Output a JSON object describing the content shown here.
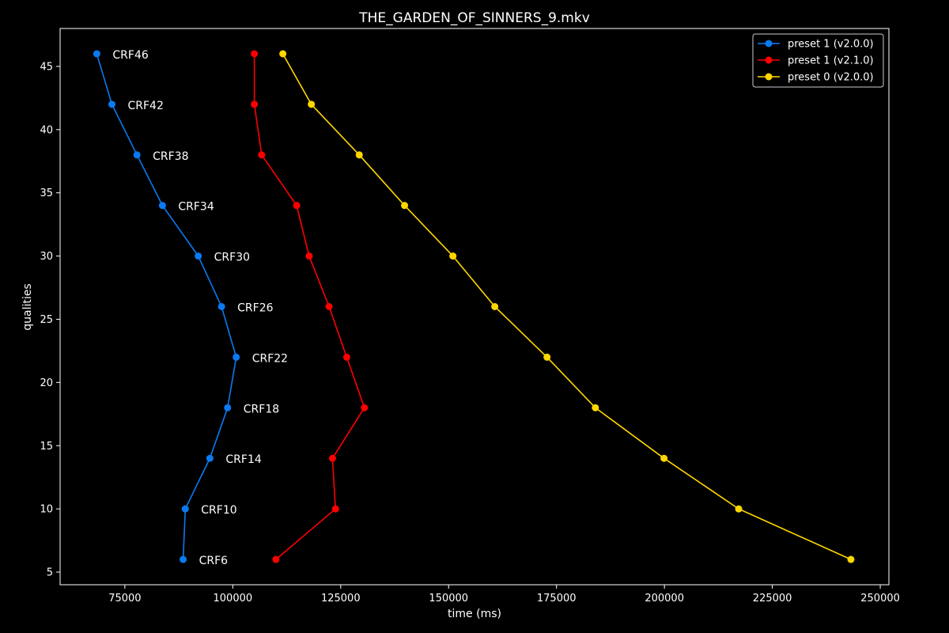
{
  "chart_data": {
    "type": "line",
    "title": "THE_GARDEN_OF_SINNERS_9.mkv",
    "xlabel": "time (ms)",
    "ylabel": "qualities",
    "xlim": [
      60000,
      252000
    ],
    "ylim": [
      4,
      48
    ],
    "xticks": [
      75000,
      100000,
      125000,
      150000,
      175000,
      200000,
      225000,
      250000
    ],
    "yticks": [
      5,
      10,
      15,
      20,
      25,
      30,
      35,
      40,
      45
    ],
    "grid": false,
    "legend_position": "top-right",
    "series": [
      {
        "name": "preset 1 (v2.0.0)",
        "color": "#0a7af2",
        "x": [
          68500,
          72000,
          77800,
          83700,
          92000,
          97400,
          100800,
          98800,
          94700,
          89000,
          88500
        ],
        "y": [
          46,
          42,
          38,
          34,
          30,
          26,
          22,
          18,
          14,
          10,
          6
        ],
        "labels": [
          "CRF46",
          "CRF42",
          "CRF38",
          "CRF34",
          "CRF30",
          "CRF26",
          "CRF22",
          "CRF18",
          "CRF14",
          "CRF10",
          "CRF6"
        ]
      },
      {
        "name": "preset 1 (v2.1.0)",
        "color": "#ff0000",
        "x": [
          105000,
          105000,
          106700,
          114800,
          117700,
          122300,
          126400,
          130500,
          123100,
          123800,
          110000
        ],
        "y": [
          46,
          42,
          38,
          34,
          30,
          26,
          22,
          18,
          14,
          10,
          6
        ]
      },
      {
        "name": "preset 0 (v2.0.0)",
        "color": "#ffd700",
        "x": [
          111600,
          118200,
          129300,
          139800,
          151000,
          160700,
          172800,
          184000,
          199900,
          217200,
          243200
        ],
        "y": [
          46,
          42,
          38,
          34,
          30,
          26,
          22,
          18,
          14,
          10,
          6
        ]
      }
    ]
  }
}
